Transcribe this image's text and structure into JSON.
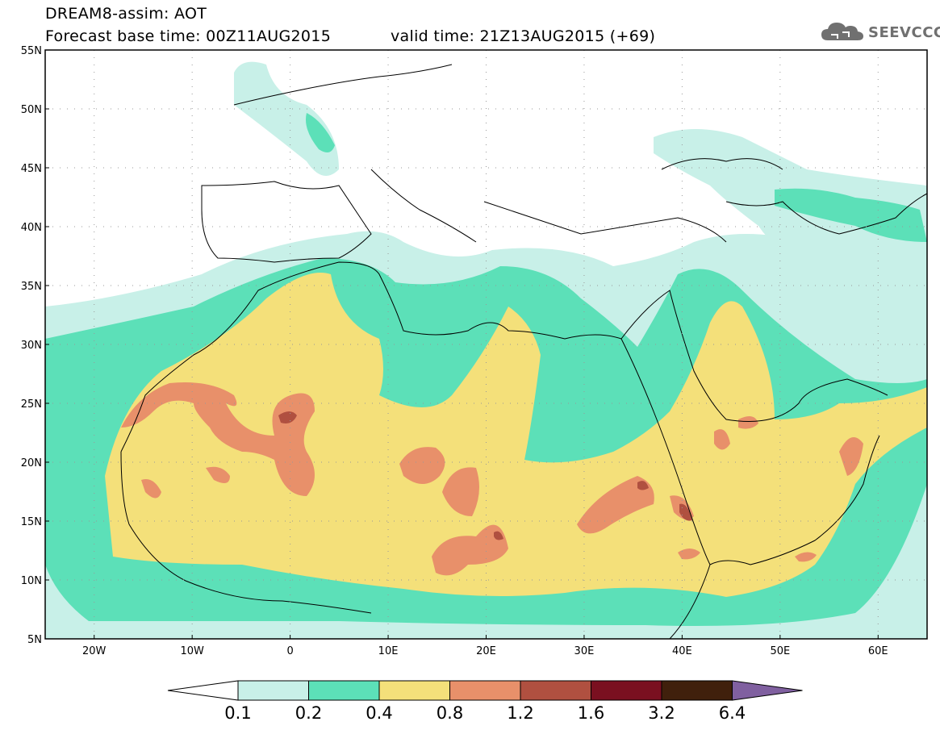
{
  "header": {
    "title": "DREAM8-assim: AOT",
    "base_time": "Forecast base time: 00Z11AUG2015",
    "valid_time": "valid time: 21Z13AUG2015 (+69)"
  },
  "logo": {
    "text": "SEEVCCC",
    "icon": "cloud-icon"
  },
  "map": {
    "lon_range": [
      -25,
      65
    ],
    "lat_range": [
      5,
      55
    ],
    "lat_ticks": [
      "55N",
      "50N",
      "45N",
      "40N",
      "35N",
      "30N",
      "25N",
      "20N",
      "15N",
      "10N",
      "5N"
    ],
    "lon_ticks": [
      "20W",
      "10W",
      "0",
      "10E",
      "20E",
      "30E",
      "40E",
      "50E",
      "60E"
    ]
  },
  "colorbar": {
    "labels": [
      "0.1",
      "0.2",
      "0.4",
      "0.8",
      "1.2",
      "1.6",
      "3.2",
      "6.4"
    ],
    "colors": [
      "#ffffff",
      "#c8f0e8",
      "#5ce0b8",
      "#f4e07a",
      "#e8906a",
      "#b05040",
      "#7a1020",
      "#40200c",
      "#8060a0"
    ]
  }
}
